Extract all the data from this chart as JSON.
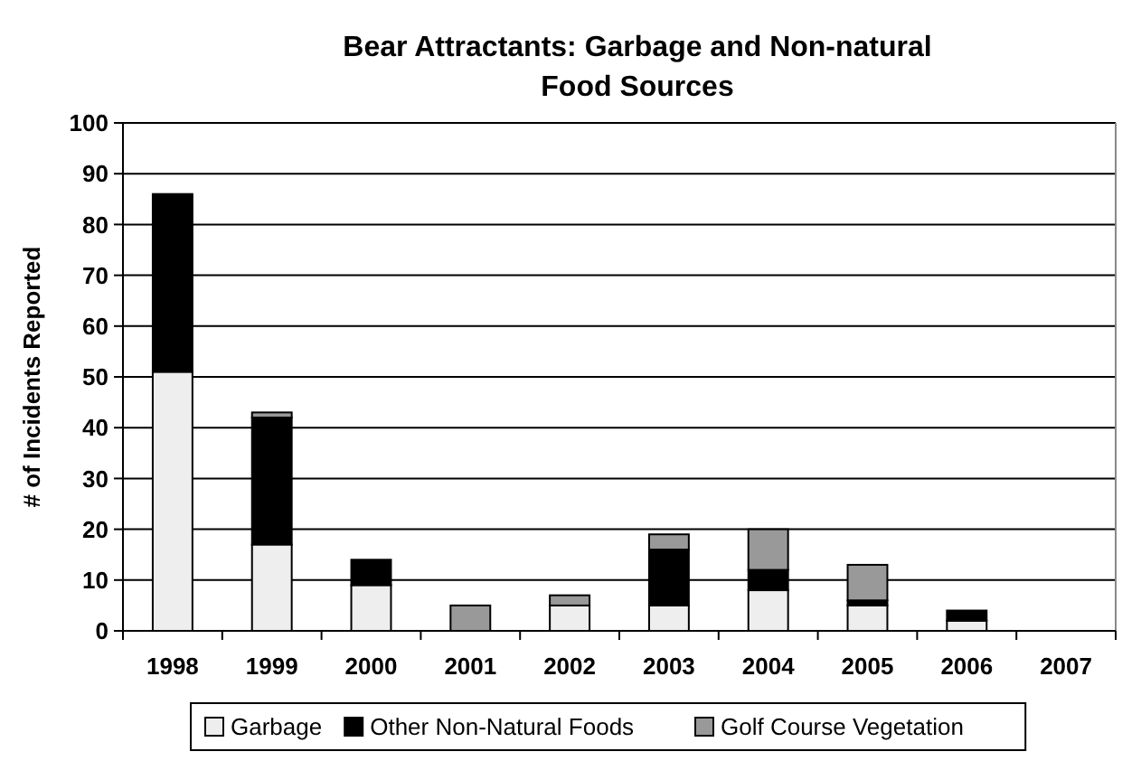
{
  "chart_data": {
    "type": "bar",
    "title": "Bear Attractants: Garbage and Non-natural Food Sources",
    "ylabel": "# of Incidents Reported",
    "categories": [
      "1998",
      "1999",
      "2000",
      "2001",
      "2002",
      "2003",
      "2004",
      "2005",
      "2006",
      "2007"
    ],
    "stacked": true,
    "series": [
      {
        "name": "Garbage",
        "color": "#eeeeee",
        "values": [
          51,
          17,
          9,
          0,
          5,
          5,
          8,
          5,
          2,
          0
        ]
      },
      {
        "name": "Other Non-Natural Foods",
        "color": "#000000",
        "values": [
          35,
          25,
          5,
          0,
          0,
          11,
          4,
          1,
          2,
          0
        ]
      },
      {
        "name": "Golf Course Vegetation",
        "color": "#999999",
        "values": [
          0,
          1,
          0,
          5,
          2,
          3,
          8,
          7,
          0,
          0
        ]
      }
    ],
    "ylim": [
      0,
      100
    ],
    "yticks": [
      0,
      10,
      20,
      30,
      40,
      50,
      60,
      70,
      80,
      90,
      100
    ],
    "grid": "y",
    "legend": "bottom"
  }
}
